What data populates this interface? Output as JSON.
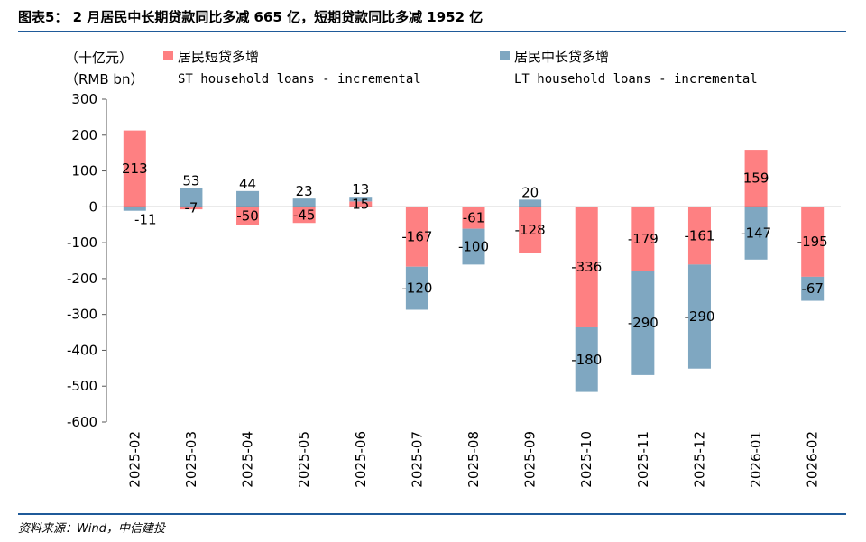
{
  "title": "图表5： 2 月居民中长期贷款同比多减 665 亿，短期贷款同比多减 1952 亿",
  "source": "资料来源：Wind，中信建投",
  "colors": {
    "st": "#fe8082",
    "lt": "#7fa7c1",
    "rule": "#1f5a99"
  },
  "chart_data": {
    "type": "bar",
    "stacked": true,
    "unit_cn": "（十亿元）",
    "unit_en": "（RMB bn）",
    "categories": [
      "2025-02",
      "2025-03",
      "2025-04",
      "2025-05",
      "2025-06",
      "2025-07",
      "2025-08",
      "2025-09",
      "2025-10",
      "2025-11",
      "2025-12",
      "2026-01",
      "2026-02"
    ],
    "series": [
      {
        "name_cn": "居民短贷多增",
        "name_en": "ST household loans - incremental",
        "color": "#fe8082",
        "values": [
          213,
          -7,
          -50,
          -45,
          15,
          -167,
          -61,
          -128,
          -336,
          -179,
          -161,
          159,
          -195
        ]
      },
      {
        "name_cn": "居民中长贷多增",
        "name_en": "LT household loans - incremental",
        "color": "#7fa7c1",
        "values": [
          -11,
          53,
          44,
          23,
          13,
          -120,
          -100,
          20,
          -180,
          -290,
          -290,
          -147,
          -67
        ]
      }
    ],
    "ylim": [
      -600,
      300
    ],
    "yticks": [
      "300",
      "200",
      "100",
      "0",
      "-100",
      "-200",
      "-300",
      "-400",
      "-500",
      "-600"
    ],
    "legend": "top"
  }
}
